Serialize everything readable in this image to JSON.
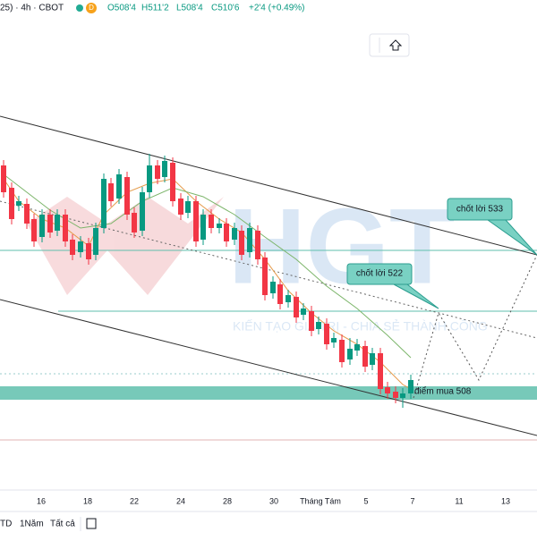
{
  "header": {
    "symbol": "25) · 4h · CBOT",
    "badge": "D",
    "open": "O508'4",
    "high": "H511'2",
    "low": "L508'4",
    "close": "C510'6",
    "change": "+2'4 (+0.49%)"
  },
  "watermark": {
    "logo": "HGT",
    "slogan": "KIẾN TẠO GIÁ TRỊ - CHIA SẺ THÀNH CÔNG"
  },
  "annotations": [
    "chốt lời 533",
    "chốt lời 522",
    "điểm mua 508"
  ],
  "x_axis": [
    "16",
    "18",
    "22",
    "24",
    "28",
    "30",
    "Tháng Tám",
    "5",
    "7",
    "11",
    "13"
  ],
  "toolbar": [
    "TD",
    "1Năm",
    "Tất cả"
  ]
}
